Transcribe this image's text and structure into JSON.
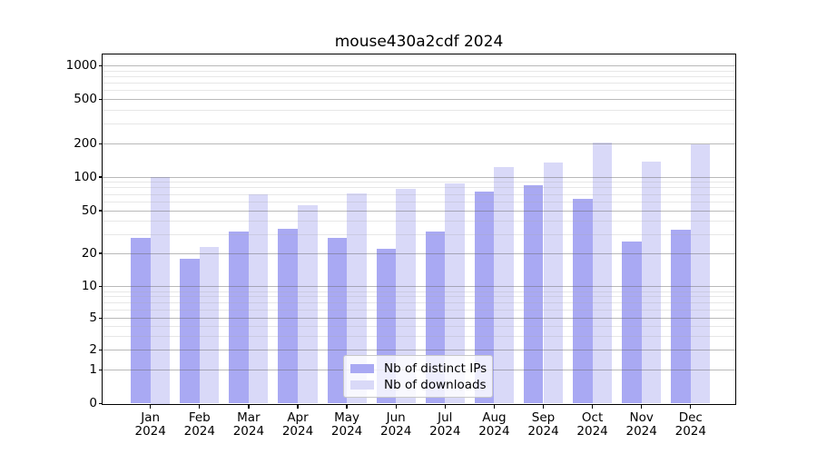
{
  "chart_data": {
    "type": "bar",
    "title": "mouse430a2cdf 2024",
    "categories": [
      "Jan",
      "Feb",
      "Mar",
      "Apr",
      "May",
      "Jun",
      "Jul",
      "Aug",
      "Sep",
      "Oct",
      "Nov",
      "Dec"
    ],
    "x_tick_year_line": "2024",
    "series": [
      {
        "name": "Nb of distinct IPs",
        "color": "#a9a9f3",
        "values": [
          28,
          18,
          32,
          34,
          28,
          22,
          32,
          74,
          84,
          64,
          26,
          33
        ]
      },
      {
        "name": "Nb of downloads",
        "color": "#d9d9f8",
        "values": [
          100,
          23,
          70,
          56,
          72,
          79,
          88,
          123,
          137,
          208,
          138,
          200
        ]
      }
    ],
    "y_axis": {
      "scale": "log-like (symlog)",
      "major_ticks": [
        0,
        1,
        2,
        5,
        10,
        20,
        50,
        100,
        200,
        500,
        1000
      ],
      "minor_ticks": [
        3,
        4,
        6,
        7,
        8,
        9,
        30,
        40,
        60,
        70,
        80,
        90,
        300,
        400,
        600,
        700,
        800,
        900
      ],
      "ylim": [
        0,
        1270
      ]
    },
    "xlabel": "",
    "ylabel": "",
    "grid": true,
    "legend_position": "lower center"
  },
  "colors": {
    "bar_distinct_ips": "#a9a9f3",
    "bar_downloads": "#d9d9f8",
    "grid_major": "rgba(100,100,100,0.45)",
    "grid_minor": "rgba(170,170,170,0.28)",
    "spine": "#000000",
    "background": "#ffffff",
    "text": "#000000"
  }
}
